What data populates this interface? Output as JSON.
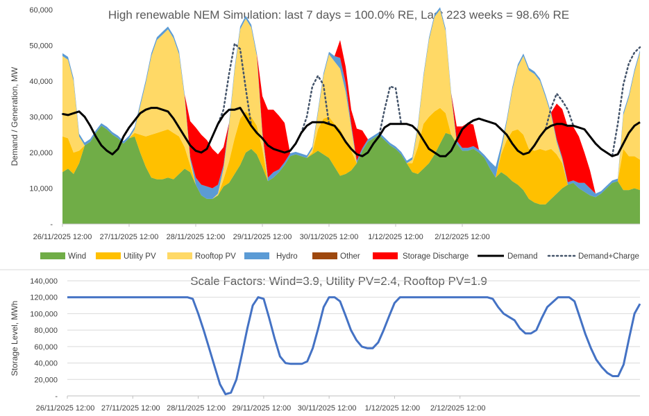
{
  "chart_data": [
    {
      "type": "area",
      "title": "High renewable NEM Simulation: last 7 days = 100.0% RE, Last 223 weeks = 98.6% RE",
      "xlabel": "",
      "ylabel": "Demand / Generation, MW",
      "ylim": [
        0,
        60000
      ],
      "yticks": [
        "-",
        "10,000",
        "20,000",
        "30,000",
        "40,000",
        "50,000",
        "60,000"
      ],
      "xticks": [
        "26/11/2025 12:00",
        "27/11/2025 12:00",
        "28/11/2025 12:00",
        "29/11/2025 12:00",
        "30/11/2025 12:00",
        "1/12/2025 12:00",
        "2/12/2025 12:00"
      ],
      "x_start": "26/11/2025 12:00",
      "hours_step": 2,
      "legend_position": "bottom",
      "colors": {
        "wind": "#70ad47",
        "utility_pv": "#ffc000",
        "rooftop_pv": "#ffd966",
        "hydro": "#5b9bd5",
        "other": "#9e480e",
        "storage": "#ff0000",
        "demand": "#000000",
        "demand_charge": "#44546a"
      },
      "series": [
        {
          "name": "Wind",
          "key": "wind",
          "values": [
            14500,
            15500,
            14000,
            17000,
            22000,
            23000,
            25500,
            27500,
            26500,
            25000,
            24000,
            22500,
            24000,
            24500,
            20000,
            16000,
            13000,
            12500,
            12500,
            13000,
            12500,
            14000,
            15500,
            14500,
            11000,
            8000,
            7000,
            7000,
            8000,
            10500,
            11500,
            14000,
            16500,
            20000,
            21000,
            19500,
            16000,
            12000,
            13000,
            14500,
            16500,
            19000,
            19500,
            19000,
            18500,
            19500,
            20500,
            19500,
            18500,
            16000,
            13500,
            14000,
            15000,
            17000,
            20500,
            23000,
            24000,
            25000,
            23500,
            22000,
            21000,
            19500,
            17000,
            14500,
            14000,
            15500,
            17000,
            19500,
            22500,
            25500,
            25000,
            22500,
            20500,
            20500,
            21000,
            20000,
            18500,
            15500,
            13000,
            14500,
            13500,
            12000,
            11000,
            9500,
            7000,
            6000,
            5500,
            5500,
            7000,
            8500,
            10000,
            11000,
            11500,
            10000,
            9000,
            8000,
            7500,
            8500,
            10000,
            11500,
            12000,
            9500,
            9500,
            10000,
            9500
          ]
        },
        {
          "name": "Utility PV",
          "key": "utility_pv",
          "values": [
            10000,
            8500,
            6000,
            3500,
            0,
            0,
            0,
            0,
            0,
            0,
            0,
            0,
            0,
            1000,
            5000,
            8500,
            12000,
            13000,
            13500,
            13500,
            13000,
            10500,
            6000,
            2000,
            0,
            0,
            0,
            0,
            0,
            2000,
            6000,
            10000,
            13000,
            11500,
            9000,
            8000,
            5000,
            0,
            0,
            0,
            0,
            0,
            0,
            0,
            0,
            500,
            6000,
            10000,
            11500,
            12000,
            13000,
            9500,
            5500,
            0,
            0,
            0,
            0,
            0,
            0,
            0,
            0,
            0,
            0,
            2500,
            7500,
            12500,
            13000,
            12000,
            10000,
            5500,
            0,
            0,
            0,
            0,
            0,
            0,
            0,
            0,
            0,
            5000,
            10000,
            14000,
            15500,
            15500,
            14000,
            14500,
            15500,
            15000,
            14000,
            11000,
            7000,
            0,
            0,
            0,
            0,
            0,
            0,
            0,
            0,
            0,
            0,
            11500,
            9500,
            9000,
            8500
          ]
        },
        {
          "name": "Rooftop PV",
          "key": "rooftop_pv",
          "values": [
            22500,
            22000,
            20000,
            4000,
            0,
            0,
            0,
            0,
            0,
            0,
            0,
            0,
            0,
            1000,
            8000,
            15000,
            22000,
            26000,
            27000,
            28000,
            26500,
            23000,
            14000,
            1500,
            0,
            0,
            0,
            0,
            500,
            3000,
            10000,
            19000,
            25000,
            26000,
            25000,
            19500,
            4000,
            0,
            0,
            0,
            0,
            0,
            0,
            0,
            0,
            1000,
            4500,
            12000,
            17500,
            17500,
            17000,
            13500,
            6500,
            0,
            0,
            0,
            0,
            0,
            0,
            0,
            0,
            0,
            0,
            1000,
            5500,
            13000,
            21500,
            26500,
            27500,
            23000,
            11000,
            0,
            0,
            0,
            0,
            0,
            0,
            0,
            0,
            1000,
            5000,
            11500,
            17500,
            22000,
            22000,
            21500,
            19000,
            15000,
            9500,
            3500,
            1000,
            0,
            0,
            0,
            0,
            0,
            0,
            0,
            0,
            0,
            0,
            9500,
            16500,
            23500,
            30000
          ]
        },
        {
          "name": "Hydro",
          "key": "hydro",
          "values": [
            800,
            800,
            800,
            800,
            800,
            800,
            700,
            700,
            700,
            700,
            700,
            700,
            700,
            700,
            800,
            800,
            800,
            800,
            800,
            800,
            800,
            800,
            800,
            800,
            2000,
            3000,
            3500,
            3000,
            2500,
            1000,
            800,
            800,
            800,
            800,
            800,
            800,
            800,
            1000,
            1500,
            800,
            800,
            800,
            700,
            700,
            700,
            700,
            700,
            700,
            700,
            1500,
            3000,
            2500,
            1000,
            700,
            700,
            700,
            700,
            700,
            700,
            700,
            700,
            700,
            700,
            700,
            700,
            700,
            700,
            700,
            700,
            700,
            700,
            800,
            800,
            800,
            800,
            800,
            800,
            2000,
            3000,
            1500,
            800,
            700,
            700,
            700,
            700,
            700,
            700,
            700,
            700,
            700,
            700,
            700,
            700,
            1500,
            2500,
            2000,
            1000,
            700,
            700,
            700,
            700,
            700,
            700,
            700,
            700
          ]
        },
        {
          "name": "Other",
          "key": "other",
          "values": [
            0,
            0,
            0,
            0,
            0,
            0,
            0,
            0,
            0,
            0,
            0,
            0,
            0,
            0,
            0,
            0,
            0,
            0,
            0,
            0,
            0,
            0,
            0,
            0,
            0,
            0,
            0,
            0,
            0,
            0,
            0,
            0,
            0,
            0,
            0,
            0,
            0,
            0,
            0,
            0,
            0,
            0,
            0,
            0,
            0,
            0,
            0,
            0,
            0,
            0,
            0,
            0,
            0,
            0,
            0,
            0,
            0,
            0,
            0,
            0,
            0,
            0,
            0,
            0,
            0,
            0,
            0,
            0,
            0,
            0,
            0,
            0,
            0,
            0,
            0,
            0,
            0,
            0,
            0,
            0,
            0,
            0,
            0,
            0,
            0,
            0,
            0,
            0,
            0,
            0,
            0,
            0,
            0,
            0,
            0,
            0,
            0,
            0,
            0,
            0,
            0,
            0,
            0,
            0,
            0
          ]
        },
        {
          "name": "Storage Discharge",
          "key": "storage",
          "values": [
            0,
            0,
            0,
            0,
            0,
            0,
            0,
            0,
            0,
            0,
            0,
            0,
            0,
            0,
            0,
            0,
            0,
            0,
            0,
            0,
            0,
            0,
            0,
            10000,
            14000,
            14000,
            13000,
            11000,
            8500,
            5000,
            0,
            0,
            0,
            0,
            0,
            0,
            10000,
            19000,
            17500,
            15000,
            11000,
            0,
            0,
            0,
            0,
            0,
            0,
            0,
            0,
            0,
            5000,
            4500,
            4000,
            9000,
            5000,
            0,
            0,
            0,
            0,
            0,
            0,
            0,
            0,
            0,
            0,
            0,
            0,
            0,
            0,
            0,
            0,
            4000,
            6000,
            7000,
            6000,
            0,
            0,
            0,
            0,
            0,
            0,
            0,
            0,
            0,
            0,
            0,
            0,
            0,
            0,
            10000,
            13500,
            15500,
            15000,
            13000,
            8500,
            5000,
            0,
            0,
            0,
            0,
            0,
            0,
            0,
            0,
            0
          ]
        },
        {
          "name": "Demand",
          "key": "demand",
          "line": true,
          "values": [
            30800,
            30500,
            31000,
            31500,
            30000,
            27500,
            24500,
            22000,
            20500,
            19500,
            21000,
            24500,
            27000,
            29000,
            31000,
            32000,
            32500,
            32500,
            32000,
            31500,
            29500,
            27000,
            24500,
            22000,
            20500,
            20000,
            21000,
            24500,
            28000,
            30500,
            32000,
            32000,
            32500,
            30000,
            27500,
            25500,
            24000,
            22000,
            21000,
            20500,
            20000,
            20500,
            22500,
            25500,
            27500,
            28500,
            28500,
            28500,
            28000,
            27500,
            25500,
            23000,
            21000,
            19500,
            19000,
            20000,
            22500,
            24500,
            27000,
            28000,
            28000,
            28000,
            28000,
            27500,
            26000,
            23500,
            21000,
            20000,
            19000,
            19000,
            20500,
            23500,
            26500,
            28000,
            29000,
            29500,
            29000,
            28500,
            28000,
            26500,
            25000,
            22500,
            20500,
            19500,
            20000,
            22000,
            24500,
            26500,
            27500,
            28000,
            28000,
            27500,
            27500,
            27000,
            26500,
            24500,
            22500,
            21000,
            20000,
            19000,
            19500,
            22500,
            25500,
            27500,
            28500
          ]
        },
        {
          "name": "Demand+Charge",
          "key": "demand_charge",
          "line": true,
          "dotted": true,
          "values": [
            30800,
            30500,
            31000,
            31500,
            30000,
            27500,
            24500,
            22000,
            20500,
            19500,
            21000,
            24500,
            27000,
            29000,
            31000,
            32000,
            32500,
            32500,
            32000,
            31500,
            29500,
            27000,
            24500,
            22000,
            20500,
            20000,
            21000,
            24500,
            28000,
            32000,
            42000,
            50500,
            49000,
            38000,
            27500,
            25500,
            24000,
            22000,
            21000,
            20500,
            20000,
            20500,
            22500,
            25500,
            30000,
            38500,
            41500,
            39000,
            28000,
            27500,
            25500,
            23000,
            21000,
            19500,
            19000,
            20000,
            22500,
            24500,
            32000,
            38500,
            38000,
            28000,
            28000,
            27500,
            26000,
            23500,
            21000,
            20000,
            19000,
            19000,
            20500,
            23500,
            26500,
            28000,
            29000,
            29500,
            29000,
            28500,
            28000,
            26500,
            25000,
            22500,
            20500,
            19500,
            20000,
            22000,
            24500,
            26500,
            32500,
            36500,
            34500,
            32000,
            27500,
            27000,
            26500,
            24500,
            22500,
            21000,
            20000,
            19000,
            28000,
            39000,
            45000,
            48000,
            49500
          ]
        }
      ]
    },
    {
      "type": "line",
      "title": "Scale Factors: Wind=3.9, Utility PV=2.4, Rooftop PV=1.9",
      "xlabel": "",
      "ylabel": "Storage Level, MWh",
      "ylim": [
        0,
        140000
      ],
      "yticks": [
        "-",
        "20,000",
        "40,000",
        "60,000",
        "80,000",
        "100,000",
        "120,000",
        "140,000"
      ],
      "xticks": [
        "26/11/2025 12:00",
        "27/11/2025 12:00",
        "28/11/2025 12:00",
        "29/11/2025 12:00",
        "30/11/2025 12:00",
        "1/12/2025 12:00",
        "2/12/2025 12:00"
      ],
      "x_start": "26/11/2025 12:00",
      "hours_step": 2,
      "grid": true,
      "color": "#4472c4",
      "series": [
        {
          "name": "Storage Level",
          "values": [
            120000,
            120000,
            120000,
            120000,
            120000,
            120000,
            120000,
            120000,
            120000,
            120000,
            120000,
            120000,
            120000,
            120000,
            120000,
            120000,
            120000,
            120000,
            120000,
            120000,
            120000,
            120000,
            120000,
            118000,
            100000,
            80000,
            58000,
            36000,
            14000,
            2000,
            4000,
            20000,
            50000,
            82000,
            110000,
            120000,
            118000,
            95000,
            70000,
            48000,
            40000,
            39000,
            39000,
            39000,
            42000,
            58000,
            82000,
            108000,
            120000,
            120000,
            115000,
            98000,
            80000,
            68000,
            60000,
            58000,
            58000,
            65000,
            80000,
            97000,
            113000,
            120000,
            120000,
            120000,
            120000,
            120000,
            120000,
            120000,
            120000,
            120000,
            120000,
            120000,
            120000,
            120000,
            120000,
            120000,
            120000,
            120000,
            118000,
            108000,
            100000,
            96000,
            92000,
            82000,
            76000,
            76000,
            80000,
            95000,
            108000,
            114000,
            120000,
            120000,
            120000,
            115000,
            95000,
            75000,
            58000,
            44000,
            35000,
            28000,
            24000,
            24000,
            38000,
            70000,
            100000,
            112000
          ]
        }
      ]
    }
  ]
}
